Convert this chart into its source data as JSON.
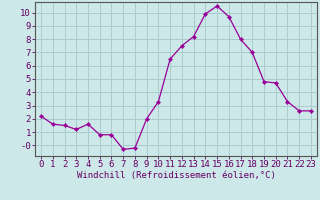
{
  "x": [
    0,
    1,
    2,
    3,
    4,
    5,
    6,
    7,
    8,
    9,
    10,
    11,
    12,
    13,
    14,
    15,
    16,
    17,
    18,
    19,
    20,
    21,
    22,
    23
  ],
  "y": [
    2.2,
    1.6,
    1.5,
    1.2,
    1.6,
    0.8,
    0.8,
    -0.3,
    -0.2,
    2.0,
    3.3,
    6.5,
    7.5,
    8.2,
    9.9,
    10.5,
    9.7,
    8.0,
    7.0,
    4.8,
    4.7,
    3.3,
    2.6,
    2.6
  ],
  "line_color": "#990099",
  "marker": "D",
  "marker_size": 2.2,
  "bg_color": "#cce8e8",
  "grid_color": "#aacccc",
  "axis_color": "#660066",
  "spine_color": "#555555",
  "xlabel": "Windchill (Refroidissement éolien,°C)",
  "xlabel_fontsize": 6.5,
  "tick_fontsize": 6.5,
  "ylim": [
    -0.8,
    10.8
  ],
  "xlim": [
    -0.5,
    23.5
  ],
  "yticks": [
    0,
    1,
    2,
    3,
    4,
    5,
    6,
    7,
    8,
    9,
    10
  ],
  "xticks": [
    0,
    1,
    2,
    3,
    4,
    5,
    6,
    7,
    8,
    9,
    10,
    11,
    12,
    13,
    14,
    15,
    16,
    17,
    18,
    19,
    20,
    21,
    22,
    23
  ],
  "ytick_labels": [
    "-0",
    "1",
    "2",
    "3",
    "4",
    "5",
    "6",
    "7",
    "8",
    "9",
    "10"
  ]
}
